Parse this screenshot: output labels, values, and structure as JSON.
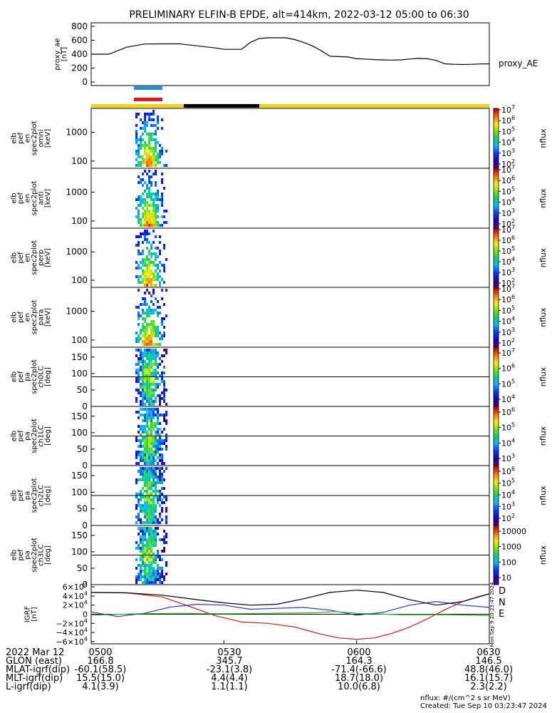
{
  "title": "PRELIMINARY ELFIN-B EPDE, alt=414km, 2022-03-12 05:00 to 06:30",
  "colors": {
    "orbit_sunlit": "#f2d40f",
    "orbit_eclipse": "#000000",
    "marker_blue": "#1f8fe0",
    "marker_red": "#e0141e",
    "igrf_D": "#d81b1b",
    "igrf_N": "#2a35c8",
    "igrf_E": "#22b822"
  },
  "chart_data": [
    {
      "type": "line",
      "panel": "proxy_ae",
      "ylabel": [
        "proxy_ae",
        "[nT]"
      ],
      "legend": "proxy_AE",
      "ylim": [
        -50,
        850
      ],
      "yticks": [
        "800",
        "600",
        "400",
        "200",
        "0"
      ],
      "ytick_values": [
        800,
        600,
        400,
        200,
        0
      ],
      "x_minutes": [
        0,
        4,
        8,
        12,
        16,
        20,
        24,
        28,
        30,
        34,
        36,
        38,
        40,
        44,
        46,
        48,
        50,
        52,
        54,
        56,
        58,
        60,
        62,
        64,
        66,
        68,
        70,
        72,
        74,
        76,
        78,
        80,
        82,
        84,
        86,
        88,
        90
      ],
      "values": [
        400,
        400,
        500,
        545,
        548,
        548,
        520,
        490,
        470,
        470,
        570,
        625,
        635,
        635,
        610,
        570,
        520,
        450,
        370,
        365,
        360,
        335,
        330,
        322,
        318,
        315,
        318,
        330,
        340,
        335,
        310,
        262,
        255,
        252,
        255,
        260,
        262
      ]
    },
    {
      "type": "heatmap",
      "panel": "spec_en_omni",
      "ylabel": [
        "elb",
        "pef",
        "en",
        "spec2plot",
        "omni",
        "[keV]"
      ],
      "yticks": [
        "1000",
        "100"
      ],
      "colorbar_label": "nflux",
      "colorbar_ticks": [
        "10^2",
        "10^3",
        "10^4",
        "10^5",
        "10^6",
        "10^7"
      ],
      "active_interval_minutes": [
        10,
        17
      ]
    },
    {
      "type": "heatmap",
      "panel": "spec_en_anti",
      "ylabel": [
        "elb",
        "pef",
        "en",
        "spec2plot",
        "anti",
        "[keV]"
      ],
      "yticks": [
        "1000",
        "100"
      ],
      "colorbar_label": "nflux",
      "colorbar_ticks": [
        "10^2",
        "10^3",
        "10^4",
        "10^5",
        "10^6",
        "10^7"
      ],
      "active_interval_minutes": [
        10,
        17
      ]
    },
    {
      "type": "heatmap",
      "panel": "spec_en_perp",
      "ylabel": [
        "elb",
        "pef",
        "en",
        "spec2plot",
        "perp",
        "[keV]"
      ],
      "yticks": [
        "1000",
        "100"
      ],
      "colorbar_label": "nflux",
      "colorbar_ticks": [
        "10^2",
        "10^3",
        "10^4",
        "10^5",
        "10^6",
        "10^7"
      ],
      "active_interval_minutes": [
        10,
        17
      ]
    },
    {
      "type": "heatmap",
      "panel": "spec_en_para",
      "ylabel": [
        "elb",
        "pef",
        "en",
        "spec2plot",
        "para",
        "[keV]"
      ],
      "yticks": [
        "1000",
        "100"
      ],
      "colorbar_label": "nflux",
      "colorbar_ticks": [
        "10^2",
        "10^3",
        "10^4",
        "10^5",
        "10^6",
        "10^7"
      ],
      "active_interval_minutes": [
        10,
        17
      ]
    },
    {
      "type": "heatmap",
      "panel": "spec_pa_ch0",
      "ylabel": [
        "elb",
        "pef",
        "pa",
        "spec2plot",
        "ch0LC",
        "[deg]"
      ],
      "yticks": [
        "150",
        "100",
        "50",
        "0"
      ],
      "ytick_values": [
        150,
        100,
        50,
        0
      ],
      "ylim": [
        0,
        180
      ],
      "colorbar_label": "nflux",
      "colorbar_ticks": [
        "10^4",
        "10^5",
        "10^6",
        "10^7"
      ],
      "active_interval_minutes": [
        10,
        17
      ]
    },
    {
      "type": "heatmap",
      "panel": "spec_pa_ch1",
      "ylabel": [
        "elb",
        "pef",
        "pa",
        "spec2plot",
        "ch1LC",
        "[deg]"
      ],
      "yticks": [
        "150",
        "100",
        "50",
        "0"
      ],
      "ytick_values": [
        150,
        100,
        50,
        0
      ],
      "ylim": [
        0,
        180
      ],
      "colorbar_label": "nflux",
      "colorbar_ticks": [
        "10^3",
        "10^4",
        "10^5",
        "10^6"
      ],
      "active_interval_minutes": [
        10,
        17
      ]
    },
    {
      "type": "heatmap",
      "panel": "spec_pa_ch2",
      "ylabel": [
        "elb",
        "pef",
        "pa",
        "spec2plot",
        "ch2LC",
        "[deg]"
      ],
      "yticks": [
        "150",
        "100",
        "50",
        "0"
      ],
      "ytick_values": [
        150,
        100,
        50,
        0
      ],
      "ylim": [
        0,
        180
      ],
      "colorbar_label": "nflux",
      "colorbar_ticks": [
        "10^2",
        "10^3",
        "10^4",
        "10^5",
        "10^6"
      ],
      "active_interval_minutes": [
        10,
        17
      ]
    },
    {
      "type": "heatmap",
      "panel": "spec_pa_ch3",
      "ylabel": [
        "elb",
        "pef",
        "pa",
        "spec2plot",
        "ch3LC",
        "[deg]"
      ],
      "yticks": [
        "150",
        "100",
        "50",
        "0"
      ],
      "ytick_values": [
        150,
        100,
        50,
        0
      ],
      "ylim": [
        0,
        180
      ],
      "colorbar_label": "nflux",
      "colorbar_ticks": [
        "10",
        "100",
        "1000",
        "10000"
      ],
      "active_interval_minutes": [
        10,
        17
      ]
    },
    {
      "type": "line",
      "panel": "igrf",
      "ylabel": [
        "IGRF",
        "[nT]"
      ],
      "ylim": [
        -65000,
        65000
      ],
      "yticks": [
        "6×10^4",
        "4×10^4",
        "2×10^4",
        "0",
        "−2×10^4",
        "−4×10^4",
        "−6×10^4"
      ],
      "ytick_values": [
        60000,
        40000,
        20000,
        0,
        -20000,
        -40000,
        -60000
      ],
      "side_label": "Mon Sep  9 20:23:47 2024",
      "series": [
        {
          "name": "D",
          "x_minutes": [
            0,
            8,
            16,
            22,
            28,
            34,
            40,
            46,
            52,
            56,
            60,
            64,
            68,
            72,
            76,
            80,
            84,
            88,
            90
          ],
          "values": [
            48000,
            47000,
            38000,
            18000,
            -3000,
            -17000,
            -20000,
            -28000,
            -44000,
            -52000,
            -55000,
            -52000,
            -42000,
            -28000,
            -10000,
            10000,
            28000,
            40000,
            45000
          ]
        },
        {
          "name": "N",
          "x_minutes": [
            0,
            6,
            12,
            18,
            24,
            30,
            36,
            42,
            48,
            54,
            60,
            66,
            72,
            78,
            84,
            90
          ],
          "values": [
            5000,
            -5000,
            2000,
            16000,
            22000,
            20000,
            11000,
            13000,
            15000,
            9000,
            -2000,
            4000,
            20000,
            28000,
            20000,
            15000
          ]
        },
        {
          "name": "black",
          "x_minutes": [
            0,
            8,
            16,
            24,
            30,
            36,
            42,
            48,
            54,
            60,
            66,
            72,
            78,
            84,
            90
          ],
          "values": [
            48000,
            47000,
            42000,
            32000,
            25000,
            20000,
            22000,
            34000,
            48000,
            53000,
            48000,
            32000,
            20000,
            28000,
            45000
          ]
        },
        {
          "name": "E",
          "x_minutes": [
            0,
            10,
            20,
            30,
            40,
            50,
            55,
            60,
            70,
            80,
            90
          ],
          "values": [
            -2000,
            1000,
            2000,
            1000,
            2000,
            3000,
            6000,
            2000,
            -1000,
            -1000,
            -3000
          ]
        }
      ]
    }
  ],
  "igrf_legend": [
    "D",
    "N",
    "E"
  ],
  "time_ticks": [
    "0500",
    "0530",
    "0600",
    "0630"
  ],
  "footer": {
    "date": "2022 Mar 12",
    "rows": [
      {
        "label": "GLON (east)",
        "values": [
          "166.8",
          "345.7",
          "164.3",
          "146.5"
        ]
      },
      {
        "label": "MLAT-igrf(dip)",
        "values": [
          "-60.1(58.5)",
          "-23.1(3.8)",
          "-71.4(-66.6)",
          "48.8(46.0)"
        ]
      },
      {
        "label": "MLT-igrf(dip)",
        "values": [
          "15.5(15.0)",
          "4.4(4.4)",
          "18.7(18.0)",
          "16.1(15.7)"
        ]
      },
      {
        "label": "L-igrf(dip)",
        "values": [
          "4.1(3.9)",
          "1.1(1.1)",
          "10.0(6.8)",
          "2.3(2.2)"
        ]
      }
    ],
    "note_units": "nflux: #/(cm^2 s sr MeV)",
    "note_created": "Created: Tue Sep 10 03:23:47 2024"
  }
}
